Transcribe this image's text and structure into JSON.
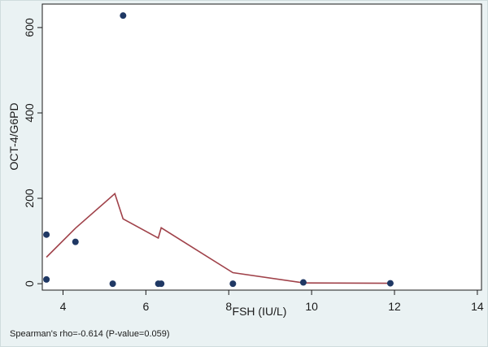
{
  "chart_data": {
    "type": "scatter",
    "xlabel": "FSH (IU/L)",
    "ylabel": "OCT-4/G6PD",
    "xlim": [
      3.5,
      14.1
    ],
    "ylim": [
      -15,
      655
    ],
    "x_ticks": [
      4,
      6,
      8,
      10,
      12,
      14
    ],
    "y_ticks": [
      0,
      200,
      400,
      600
    ],
    "grid": false,
    "annotation": "Spearman's rho=-0.614 (P-value=0.059)",
    "series": [
      {
        "kind": "scatter",
        "color": "#1f3864",
        "points": [
          {
            "x": 3.6,
            "y": 115
          },
          {
            "x": 3.6,
            "y": 10
          },
          {
            "x": 4.3,
            "y": 98
          },
          {
            "x": 5.2,
            "y": 0
          },
          {
            "x": 5.45,
            "y": 628
          },
          {
            "x": 6.3,
            "y": 0
          },
          {
            "x": 6.37,
            "y": 0
          },
          {
            "x": 8.1,
            "y": 0
          },
          {
            "x": 9.8,
            "y": 3
          },
          {
            "x": 11.9,
            "y": 1
          }
        ]
      },
      {
        "kind": "line",
        "color": "#a0424a",
        "points": [
          {
            "x": 3.6,
            "y": 62
          },
          {
            "x": 4.3,
            "y": 130
          },
          {
            "x": 5.25,
            "y": 211
          },
          {
            "x": 5.45,
            "y": 152
          },
          {
            "x": 6.3,
            "y": 107
          },
          {
            "x": 6.37,
            "y": 131
          },
          {
            "x": 8.1,
            "y": 26
          },
          {
            "x": 9.8,
            "y": 2
          },
          {
            "x": 11.9,
            "y": 1
          }
        ]
      }
    ]
  }
}
